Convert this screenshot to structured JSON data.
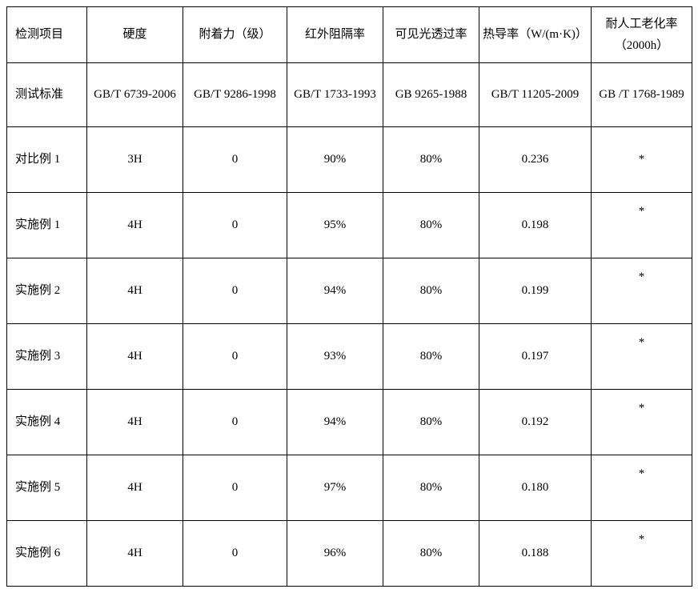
{
  "table": {
    "columns": [
      {
        "header": "检测项目",
        "standard": "测试标准"
      },
      {
        "header": "硬度",
        "standard": "GB/T 6739-2006"
      },
      {
        "header": "附着力（级）",
        "standard": "GB/T 9286-1998"
      },
      {
        "header": "红外阻隔率",
        "standard": "GB/T 1733-1993"
      },
      {
        "header": "可见光透过率",
        "standard": "GB 9265-1988"
      },
      {
        "header": "热导率（W/(m·K)）",
        "standard": "GB/T 11205-2009"
      },
      {
        "header": "耐人工老化率（2000h）",
        "standard": "GB /T 1768-1989"
      }
    ],
    "rows": [
      {
        "label": "对比例 1",
        "cells": [
          "3H",
          "0",
          "90%",
          "80%",
          "0.236",
          "*"
        ]
      },
      {
        "label": "实施例 1",
        "cells": [
          "4H",
          "0",
          "95%",
          "80%",
          "0.198",
          "*"
        ]
      },
      {
        "label": "实施例 2",
        "cells": [
          "4H",
          "0",
          "94%",
          "80%",
          "0.199",
          "*"
        ]
      },
      {
        "label": "实施例 3",
        "cells": [
          "4H",
          "0",
          "93%",
          "80%",
          "0.197",
          "*"
        ]
      },
      {
        "label": "实施例 4",
        "cells": [
          "4H",
          "0",
          "94%",
          "80%",
          "0.192",
          "*"
        ]
      },
      {
        "label": "实施例 5",
        "cells": [
          "4H",
          "0",
          "97%",
          "80%",
          "0.180",
          "*"
        ]
      },
      {
        "label": "实施例 6",
        "cells": [
          "4H",
          "0",
          "96%",
          "80%",
          "0.188",
          "*"
        ]
      }
    ],
    "styling": {
      "border_color": "#000000",
      "background_color": "#ffffff",
      "text_color": "#000000",
      "font_family": "SimSun",
      "font_size_pt": 11,
      "cell_align": "center",
      "first_col_align": "left",
      "asterisk_valign": "top"
    }
  }
}
